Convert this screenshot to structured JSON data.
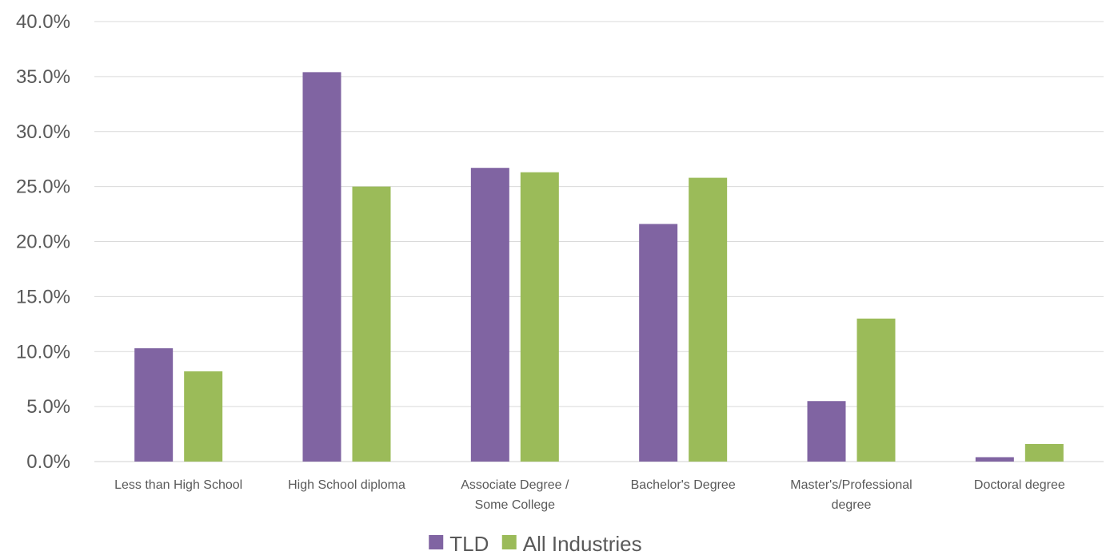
{
  "chart_data": {
    "type": "bar",
    "title": "",
    "xlabel": "",
    "ylabel": "",
    "categories": [
      "Less than High School",
      "High School diploma",
      "Associate Degree / Some College",
      "Bachelor's Degree",
      "Master's/Professional degree",
      "Doctoral degree"
    ],
    "category_lines": [
      [
        "Less than High School"
      ],
      [
        "High School diploma"
      ],
      [
        "Associate Degree /",
        "Some College"
      ],
      [
        "Bachelor's Degree"
      ],
      [
        "Master's/Professional",
        "degree"
      ],
      [
        "Doctoral degree"
      ]
    ],
    "series": [
      {
        "name": "TLD",
        "color": "#8064a2",
        "values": [
          10.3,
          35.4,
          26.7,
          21.6,
          5.5,
          0.4
        ]
      },
      {
        "name": "All Industries",
        "color": "#9bbb59",
        "values": [
          8.2,
          25.0,
          26.3,
          25.8,
          13.0,
          1.6
        ]
      }
    ],
    "ylim": [
      0,
      40
    ],
    "yticks": [
      0,
      5,
      10,
      15,
      20,
      25,
      30,
      35,
      40
    ],
    "ytick_labels": [
      "0.0%",
      "5.0%",
      "10.0%",
      "15.0%",
      "20.0%",
      "25.0%",
      "30.0%",
      "35.0%",
      "40.0%"
    ],
    "value_unit": "%",
    "grid": true,
    "legend": "bottom-center"
  }
}
